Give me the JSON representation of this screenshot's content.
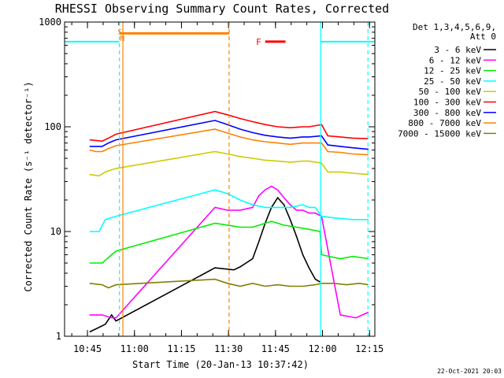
{
  "chart_data": {
    "type": "line",
    "title": "RHESSI Observing Summary Count Rates, Corrected",
    "xlabel": "Start Time (20-Jan-13 10:37:42)",
    "ylabel": "Corrected Count Rate (s⁻¹ detector⁻¹)",
    "yscale": "log",
    "ylim": [
      1,
      1000
    ],
    "xlim_minutes": [
      0,
      99
    ],
    "x_ticks": [
      {
        "label": "10:45",
        "minute": 7.3
      },
      {
        "label": "11:00",
        "minute": 22.3
      },
      {
        "label": "11:15",
        "minute": 37.3
      },
      {
        "label": "11:30",
        "minute": 52.3
      },
      {
        "label": "11:45",
        "minute": 67.3
      },
      {
        "label": "12:00",
        "minute": 82.3
      },
      {
        "label": "12:15",
        "minute": 97.3
      }
    ],
    "y_ticks": [
      {
        "label": "1",
        "value": 1
      },
      {
        "label": "10",
        "value": 10
      },
      {
        "label": "100",
        "value": 100
      },
      {
        "label": "1000",
        "value": 1000
      }
    ],
    "legend": {
      "header": [
        "Det 1,3,4,5,6,9,",
        "Att 0"
      ],
      "placement": "right",
      "entries": [
        {
          "label": "3 - 6 keV",
          "color": "#000000"
        },
        {
          "label": "6 - 12 keV",
          "color": "#ff00ff"
        },
        {
          "label": "12 - 25 keV",
          "color": "#00ee00"
        },
        {
          "label": "25 - 50 keV",
          "color": "#00ffff"
        },
        {
          "label": "50 - 100 keV",
          "color": "#cccc00"
        },
        {
          "label": "100 - 300 keV",
          "color": "#ff0000"
        },
        {
          "label": "300 - 800 keV",
          "color": "#0000ff"
        },
        {
          "label": "800 - 7000 keV",
          "color": "#ff8000"
        },
        {
          "label": "7000 - 15000 keV",
          "color": "#808000"
        }
      ]
    },
    "series": [
      {
        "name": "3 - 6 keV",
        "color": "#000000",
        "points": [
          [
            8,
            1.1
          ],
          [
            13,
            1.3
          ],
          [
            15,
            1.6
          ],
          [
            16.4,
            1.4
          ],
          [
            48,
            4.5
          ],
          [
            54,
            4.3
          ],
          [
            56,
            4.6
          ],
          [
            60,
            5.5
          ],
          [
            62,
            8
          ],
          [
            64,
            12
          ],
          [
            66,
            17
          ],
          [
            68,
            21
          ],
          [
            70,
            18
          ],
          [
            72,
            13
          ],
          [
            74,
            9
          ],
          [
            76,
            6
          ],
          [
            78,
            4.5
          ],
          [
            80,
            3.5
          ],
          [
            81.5,
            3.3
          ]
        ]
      },
      {
        "name": "6 - 12 keV",
        "color": "#ff00ff",
        "points": [
          [
            8,
            1.6
          ],
          [
            12,
            1.6
          ],
          [
            15,
            1.5
          ],
          [
            16.4,
            1.5
          ],
          [
            48,
            17
          ],
          [
            52,
            16
          ],
          [
            56,
            16
          ],
          [
            60,
            17
          ],
          [
            62,
            22
          ],
          [
            64,
            25
          ],
          [
            66,
            27
          ],
          [
            68,
            25
          ],
          [
            70,
            21
          ],
          [
            72,
            18
          ],
          [
            74,
            16
          ],
          [
            76,
            16
          ],
          [
            78,
            15
          ],
          [
            80,
            15
          ],
          [
            82,
            14
          ],
          [
            88,
            1.6
          ],
          [
            93,
            1.5
          ],
          [
            97,
            1.7
          ]
        ]
      },
      {
        "name": "12 - 25 keV",
        "color": "#00ee00",
        "points": [
          [
            8,
            5
          ],
          [
            12,
            5
          ],
          [
            15,
            6
          ],
          [
            16.4,
            6.5
          ],
          [
            48,
            12
          ],
          [
            52,
            11.5
          ],
          [
            56,
            11
          ],
          [
            60,
            11
          ],
          [
            64,
            12
          ],
          [
            66,
            12.5
          ],
          [
            68,
            12
          ],
          [
            70,
            11.5
          ],
          [
            74,
            11
          ],
          [
            78,
            10.5
          ],
          [
            81.5,
            10
          ],
          [
            82,
            6
          ],
          [
            88,
            5.5
          ],
          [
            92,
            5.8
          ],
          [
            97,
            5.5
          ]
        ]
      },
      {
        "name": "25 - 50 keV",
        "color": "#00ffff",
        "points": [
          [
            8,
            10
          ],
          [
            11,
            10
          ],
          [
            13,
            13
          ],
          [
            16.4,
            14
          ],
          [
            48,
            25
          ],
          [
            52,
            23
          ],
          [
            56,
            20
          ],
          [
            60,
            18
          ],
          [
            64,
            17
          ],
          [
            68,
            17
          ],
          [
            72,
            17
          ],
          [
            76,
            18
          ],
          [
            78,
            17
          ],
          [
            80,
            17
          ],
          [
            82,
            14
          ],
          [
            86,
            13.5
          ],
          [
            92,
            13
          ],
          [
            97,
            13
          ]
        ]
      },
      {
        "name": "50 - 100 keV",
        "color": "#cccc00",
        "points": [
          [
            8,
            35
          ],
          [
            11,
            34
          ],
          [
            13,
            37
          ],
          [
            16.4,
            40
          ],
          [
            48,
            58
          ],
          [
            52,
            55
          ],
          [
            56,
            52
          ],
          [
            60,
            50
          ],
          [
            64,
            48
          ],
          [
            68,
            47
          ],
          [
            72,
            46
          ],
          [
            76,
            47
          ],
          [
            78,
            47
          ],
          [
            82,
            45
          ],
          [
            84,
            37
          ],
          [
            88,
            37
          ],
          [
            92,
            36
          ],
          [
            97,
            35
          ]
        ]
      },
      {
        "name": "100 - 300 keV",
        "color": "#ff0000",
        "points": [
          [
            8,
            75
          ],
          [
            12,
            73
          ],
          [
            14,
            78
          ],
          [
            16.4,
            85
          ],
          [
            48,
            140
          ],
          [
            52,
            130
          ],
          [
            56,
            120
          ],
          [
            60,
            112
          ],
          [
            64,
            105
          ],
          [
            68,
            100
          ],
          [
            72,
            98
          ],
          [
            76,
            100
          ],
          [
            78,
            100
          ],
          [
            82,
            105
          ],
          [
            84,
            82
          ],
          [
            88,
            80
          ],
          [
            92,
            78
          ],
          [
            97,
            77
          ]
        ]
      },
      {
        "name": "300 - 800 keV",
        "color": "#0000ff",
        "points": [
          [
            8,
            65
          ],
          [
            12,
            65
          ],
          [
            14,
            70
          ],
          [
            16.4,
            75
          ],
          [
            48,
            115
          ],
          [
            52,
            105
          ],
          [
            56,
            95
          ],
          [
            60,
            88
          ],
          [
            64,
            83
          ],
          [
            68,
            80
          ],
          [
            72,
            78
          ],
          [
            76,
            80
          ],
          [
            78,
            80
          ],
          [
            82,
            82
          ],
          [
            84,
            67
          ],
          [
            88,
            65
          ],
          [
            92,
            63
          ],
          [
            97,
            61
          ]
        ]
      },
      {
        "name": "800 - 7000 keV",
        "color": "#ff8000",
        "points": [
          [
            8,
            60
          ],
          [
            10,
            58
          ],
          [
            12,
            58
          ],
          [
            14,
            62
          ],
          [
            16.4,
            66
          ],
          [
            48,
            95
          ],
          [
            52,
            87
          ],
          [
            56,
            80
          ],
          [
            60,
            75
          ],
          [
            64,
            72
          ],
          [
            68,
            70
          ],
          [
            72,
            68
          ],
          [
            76,
            70
          ],
          [
            78,
            70
          ],
          [
            82,
            70
          ],
          [
            84,
            58
          ],
          [
            88,
            57
          ],
          [
            92,
            55
          ],
          [
            97,
            54
          ]
        ]
      },
      {
        "name": "7000 - 15000 keV",
        "color": "#808000",
        "points": [
          [
            8,
            3.2
          ],
          [
            12,
            3.1
          ],
          [
            14,
            2.9
          ],
          [
            16.4,
            3.1
          ],
          [
            48,
            3.5
          ],
          [
            52,
            3.2
          ],
          [
            56,
            3.0
          ],
          [
            60,
            3.2
          ],
          [
            64,
            3.0
          ],
          [
            68,
            3.1
          ],
          [
            72,
            3.0
          ],
          [
            76,
            3.0
          ],
          [
            80,
            3.1
          ],
          [
            82,
            3.2
          ],
          [
            86,
            3.2
          ],
          [
            90,
            3.1
          ],
          [
            94,
            3.2
          ],
          [
            97,
            3.1
          ]
        ]
      }
    ],
    "annotations": {
      "attenuator_level": [
        {
          "from": 0,
          "to": 17.5,
          "value": 650,
          "color": "#00ffff"
        },
        {
          "from": 81.7,
          "to": 99,
          "value": 650,
          "color": "#00ffff"
        }
      ],
      "saa_interval": {
        "from": 17.5,
        "to": 52.5,
        "value": 780,
        "color": "#ff8000"
      },
      "flare_bar": {
        "label": "F",
        "from": 64,
        "to": 70.5,
        "value": 650,
        "color": "#ff0000"
      },
      "markers": [
        {
          "label": "S",
          "minute": 17.7,
          "color": "#ff8000"
        },
        {
          "label": "N",
          "minute": 18.4,
          "color": "#ff8000"
        }
      ],
      "vertical_lines": [
        {
          "minute": 17.5,
          "color": "#00ffff",
          "style": "dashed"
        },
        {
          "minute": 18.6,
          "color": "#ff8000",
          "style": "solid"
        },
        {
          "minute": 52.5,
          "color": "#ff8000",
          "style": "dashed"
        },
        {
          "minute": 81.7,
          "color": "#00ffff",
          "style": "solid"
        },
        {
          "minute": 96.8,
          "color": "#00ffff",
          "style": "dashed"
        }
      ]
    },
    "timestamp": "22-Oct-2021 20:03"
  }
}
